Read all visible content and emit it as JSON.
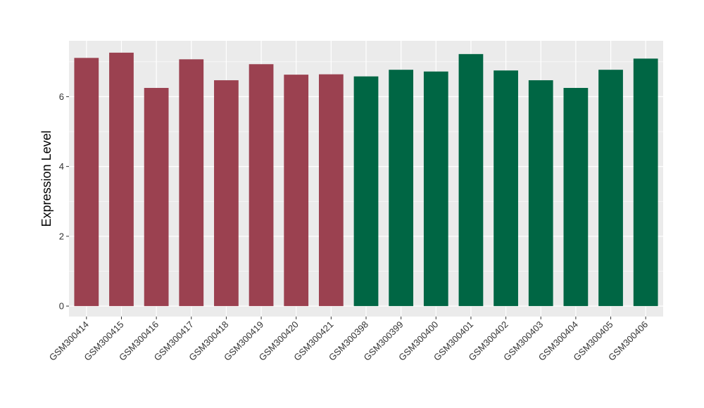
{
  "chart_data": {
    "type": "bar",
    "title": "",
    "xlabel": "",
    "ylabel": "Expression Level",
    "ylim": [
      -0.3,
      7.6
    ],
    "yticks": [
      0,
      2,
      4,
      6
    ],
    "grid": true,
    "legend": "none",
    "categories": [
      "GSM300414",
      "GSM300415",
      "GSM300416",
      "GSM300417",
      "GSM300418",
      "GSM300419",
      "GSM300420",
      "GSM300421",
      "GSM300398",
      "GSM300399",
      "GSM300400",
      "GSM300401",
      "GSM300402",
      "GSM300403",
      "GSM300404",
      "GSM300405",
      "GSM300406"
    ],
    "values": [
      7.11,
      7.26,
      6.25,
      7.07,
      6.47,
      6.93,
      6.63,
      6.64,
      6.58,
      6.77,
      6.72,
      7.22,
      6.75,
      6.47,
      6.25,
      6.77,
      7.09
    ],
    "groups": [
      1,
      1,
      1,
      1,
      1,
      1,
      1,
      1,
      2,
      2,
      2,
      2,
      2,
      2,
      2,
      2,
      2
    ],
    "colors": {
      "group1": "#9B4150",
      "group2": "#006644",
      "panel": "#EBEBEB",
      "grid": "#FFFFFF"
    }
  }
}
